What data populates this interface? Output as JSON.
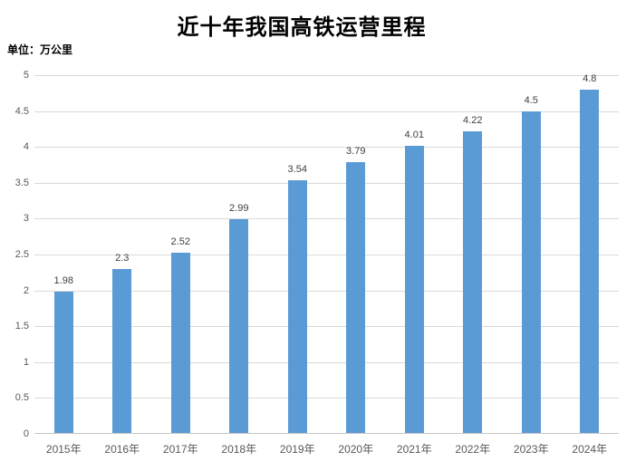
{
  "page": {
    "background_color": "#ffffff"
  },
  "chart_data": {
    "type": "bar",
    "title": "近十年我国高铁运营里程",
    "unit_label": "单位：万公里",
    "categories": [
      "2015年",
      "2016年",
      "2017年",
      "2018年",
      "2019年",
      "2020年",
      "2021年",
      "2022年",
      "2023年",
      "2024年"
    ],
    "values": [
      1.98,
      2.3,
      2.52,
      2.99,
      3.54,
      3.79,
      4.01,
      4.22,
      4.5,
      4.8
    ],
    "value_labels": [
      "1.98",
      "2.3",
      "2.52",
      "2.99",
      "3.54",
      "3.79",
      "4.01",
      "4.22",
      "4.5",
      "4.8"
    ],
    "xlabel": "",
    "ylabel": "",
    "ylim": [
      0,
      5
    ],
    "ytick_step": 0.5,
    "ytick_labels": [
      "0",
      "0.5",
      "1",
      "1.5",
      "2",
      "2.5",
      "3",
      "3.5",
      "4",
      "4.5",
      "5"
    ],
    "grid": true,
    "legend": "none",
    "colors": {
      "bar": "#5B9BD5",
      "gridline": "#D9D9D9",
      "axis_line": "#C6C6C6",
      "tick_label": "#595959",
      "value_label": "#3F3F3F",
      "title": "#000000"
    }
  }
}
